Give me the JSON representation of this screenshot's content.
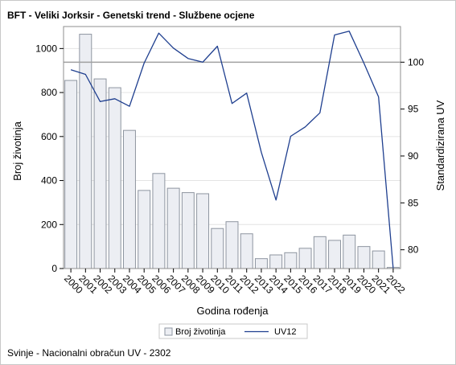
{
  "chart_data": {
    "type": "bar+line",
    "title": "BFT - Veliki Jorksir - Genetski trend - Službene ocjene",
    "xlabel": "Godina rođenja",
    "ylabel_left": "Broj životinja",
    "ylabel_right": "Standardizirana UV",
    "categories": [
      "2000",
      "2001",
      "2002",
      "2003",
      "2004",
      "2005",
      "2006",
      "2007",
      "2008",
      "2009",
      "2010",
      "2011",
      "2012",
      "2013",
      "2014",
      "2015",
      "2016",
      "2017",
      "2018",
      "2019",
      "2020",
      "2021",
      "2022"
    ],
    "bar_series": {
      "name": "Broj životinja",
      "values": [
        855,
        1065,
        862,
        822,
        628,
        355,
        432,
        365,
        345,
        340,
        182,
        213,
        158,
        45,
        62,
        72,
        92,
        145,
        128,
        152,
        100,
        80,
        5
      ]
    },
    "line_series": {
      "name": "UV12",
      "values": [
        99.2,
        98.7,
        95.8,
        96.1,
        95.3,
        99.9,
        103.1,
        101.5,
        100.4,
        100.0,
        101.7,
        95.6,
        96.7,
        90.4,
        85.3,
        92.1,
        93.1,
        94.6,
        102.9,
        103.3,
        99.9,
        96.3,
        78.0
      ]
    },
    "left_axis": {
      "min": 0,
      "max": 1100,
      "ticks": [
        0,
        200,
        400,
        600,
        800,
        1000
      ]
    },
    "right_axis": {
      "min": 78,
      "max": 103.8,
      "ticks": [
        80,
        85,
        90,
        95,
        100
      ],
      "reference_line": 100
    },
    "legend": {
      "placement": "bottom",
      "items": [
        "Broj životinja",
        "UV12"
      ]
    },
    "grid": "horizontal",
    "colors": {
      "bar_fill": "#eceef3",
      "bar_stroke": "#8e95a0",
      "line": "#1f3f8f",
      "reference": "#a0a0a0",
      "grid": "#e4e4e4"
    }
  },
  "footnote": "Svinje - Nacionalni obračun UV - 2302"
}
